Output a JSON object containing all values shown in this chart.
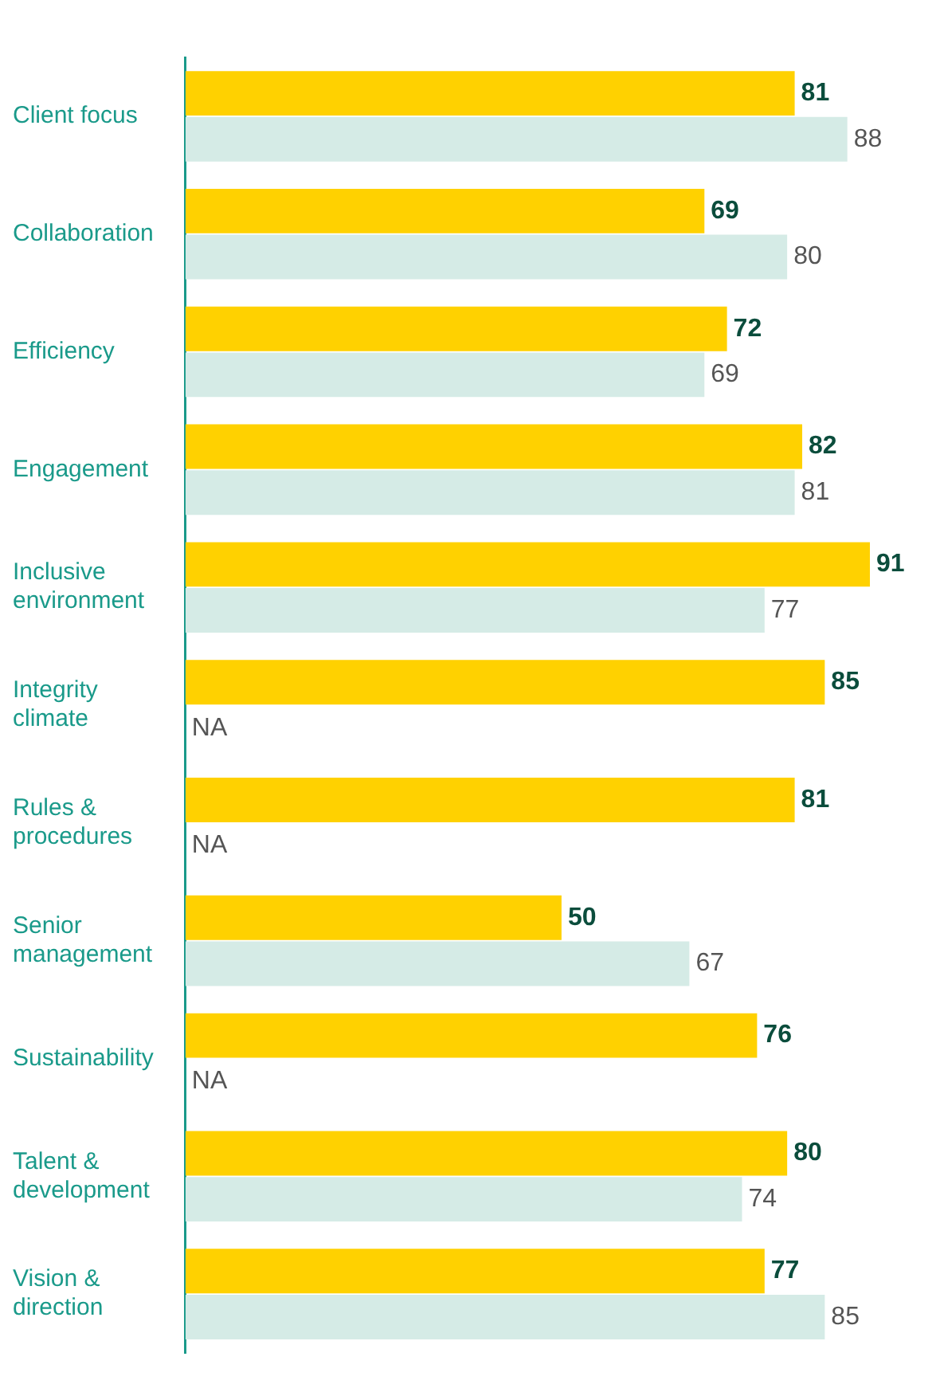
{
  "chart_data": {
    "type": "bar",
    "orientation": "horizontal",
    "categories": [
      "Client focus",
      "Collaboration",
      "Efficiency",
      "Engagement",
      "Inclusive environment",
      "Integrity climate",
      "Rules & procedures",
      "Senior management",
      "Sustainability",
      "Talent & development",
      "Vision & direction"
    ],
    "series": [
      {
        "color": "#ffd100",
        "values": [
          81,
          69,
          72,
          82,
          91,
          85,
          81,
          50,
          76,
          80,
          77
        ],
        "value_labels": [
          "81",
          "69",
          "72",
          "82",
          "91",
          "85",
          "81",
          "50",
          "76",
          "80",
          "77"
        ]
      },
      {
        "color": "#d5ebe6",
        "values": [
          88,
          80,
          69,
          81,
          77,
          null,
          null,
          67,
          null,
          74,
          85
        ],
        "value_labels": [
          "88",
          "80",
          "69",
          "81",
          "77",
          "NA",
          "NA",
          "67",
          "NA",
          "74",
          "85"
        ]
      }
    ],
    "xlim": [
      0,
      91
    ],
    "tick_labels": "y",
    "grid": false,
    "legend": false
  }
}
